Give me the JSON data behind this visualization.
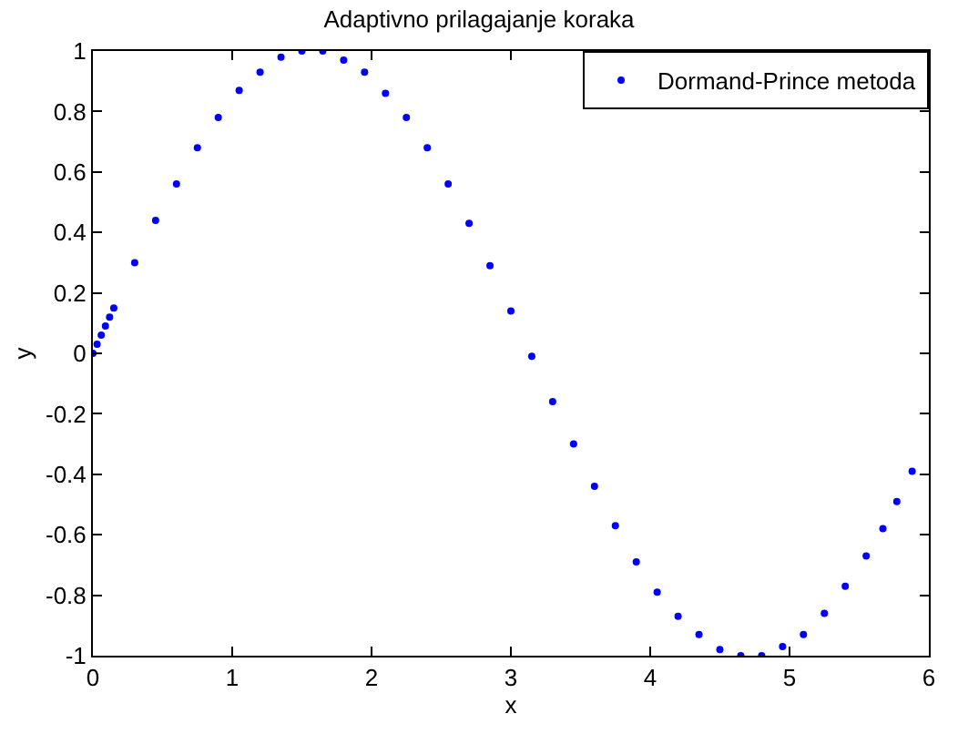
{
  "chart_data": {
    "type": "scatter",
    "title": "Adaptivno prilagajanje koraka",
    "xlabel": "x",
    "ylabel": "y",
    "x": [
      0,
      0.03,
      0.06,
      0.09,
      0.12,
      0.15,
      0.3,
      0.45,
      0.6,
      0.75,
      0.9,
      1.05,
      1.2,
      1.35,
      1.5,
      1.65,
      1.8,
      1.95,
      2.1,
      2.25,
      2.4,
      2.55,
      2.7,
      2.85,
      3.0,
      3.15,
      3.3,
      3.45,
      3.6,
      3.75,
      3.9,
      4.05,
      4.2,
      4.35,
      4.5,
      4.65,
      4.8,
      4.95,
      5.1,
      5.25,
      5.4,
      5.55,
      5.67,
      5.77,
      5.88
    ],
    "series": [
      {
        "name": "Dormand-Prince metoda",
        "color": "#0000ff",
        "values": [
          0,
          0.03,
          0.06,
          0.09,
          0.12,
          0.15,
          0.3,
          0.44,
          0.56,
          0.68,
          0.78,
          0.87,
          0.93,
          0.98,
          1.0,
          1.0,
          0.97,
          0.93,
          0.86,
          0.78,
          0.68,
          0.56,
          0.43,
          0.29,
          0.14,
          -0.01,
          -0.16,
          -0.3,
          -0.44,
          -0.57,
          -0.69,
          -0.79,
          -0.87,
          -0.93,
          -0.98,
          -1.0,
          -1.0,
          -0.97,
          -0.93,
          -0.86,
          -0.77,
          -0.67,
          -0.58,
          -0.49,
          -0.39
        ]
      }
    ],
    "xlim": [
      0,
      6
    ],
    "xticks": [
      0,
      1,
      2,
      3,
      4,
      5,
      6
    ],
    "ylim": [
      -1,
      1
    ],
    "yticks": [
      -1,
      -0.8,
      -0.6,
      -0.4,
      -0.2,
      0,
      0.2,
      0.4,
      0.6,
      0.8,
      1
    ],
    "legend": "top right",
    "marker": "circle"
  }
}
